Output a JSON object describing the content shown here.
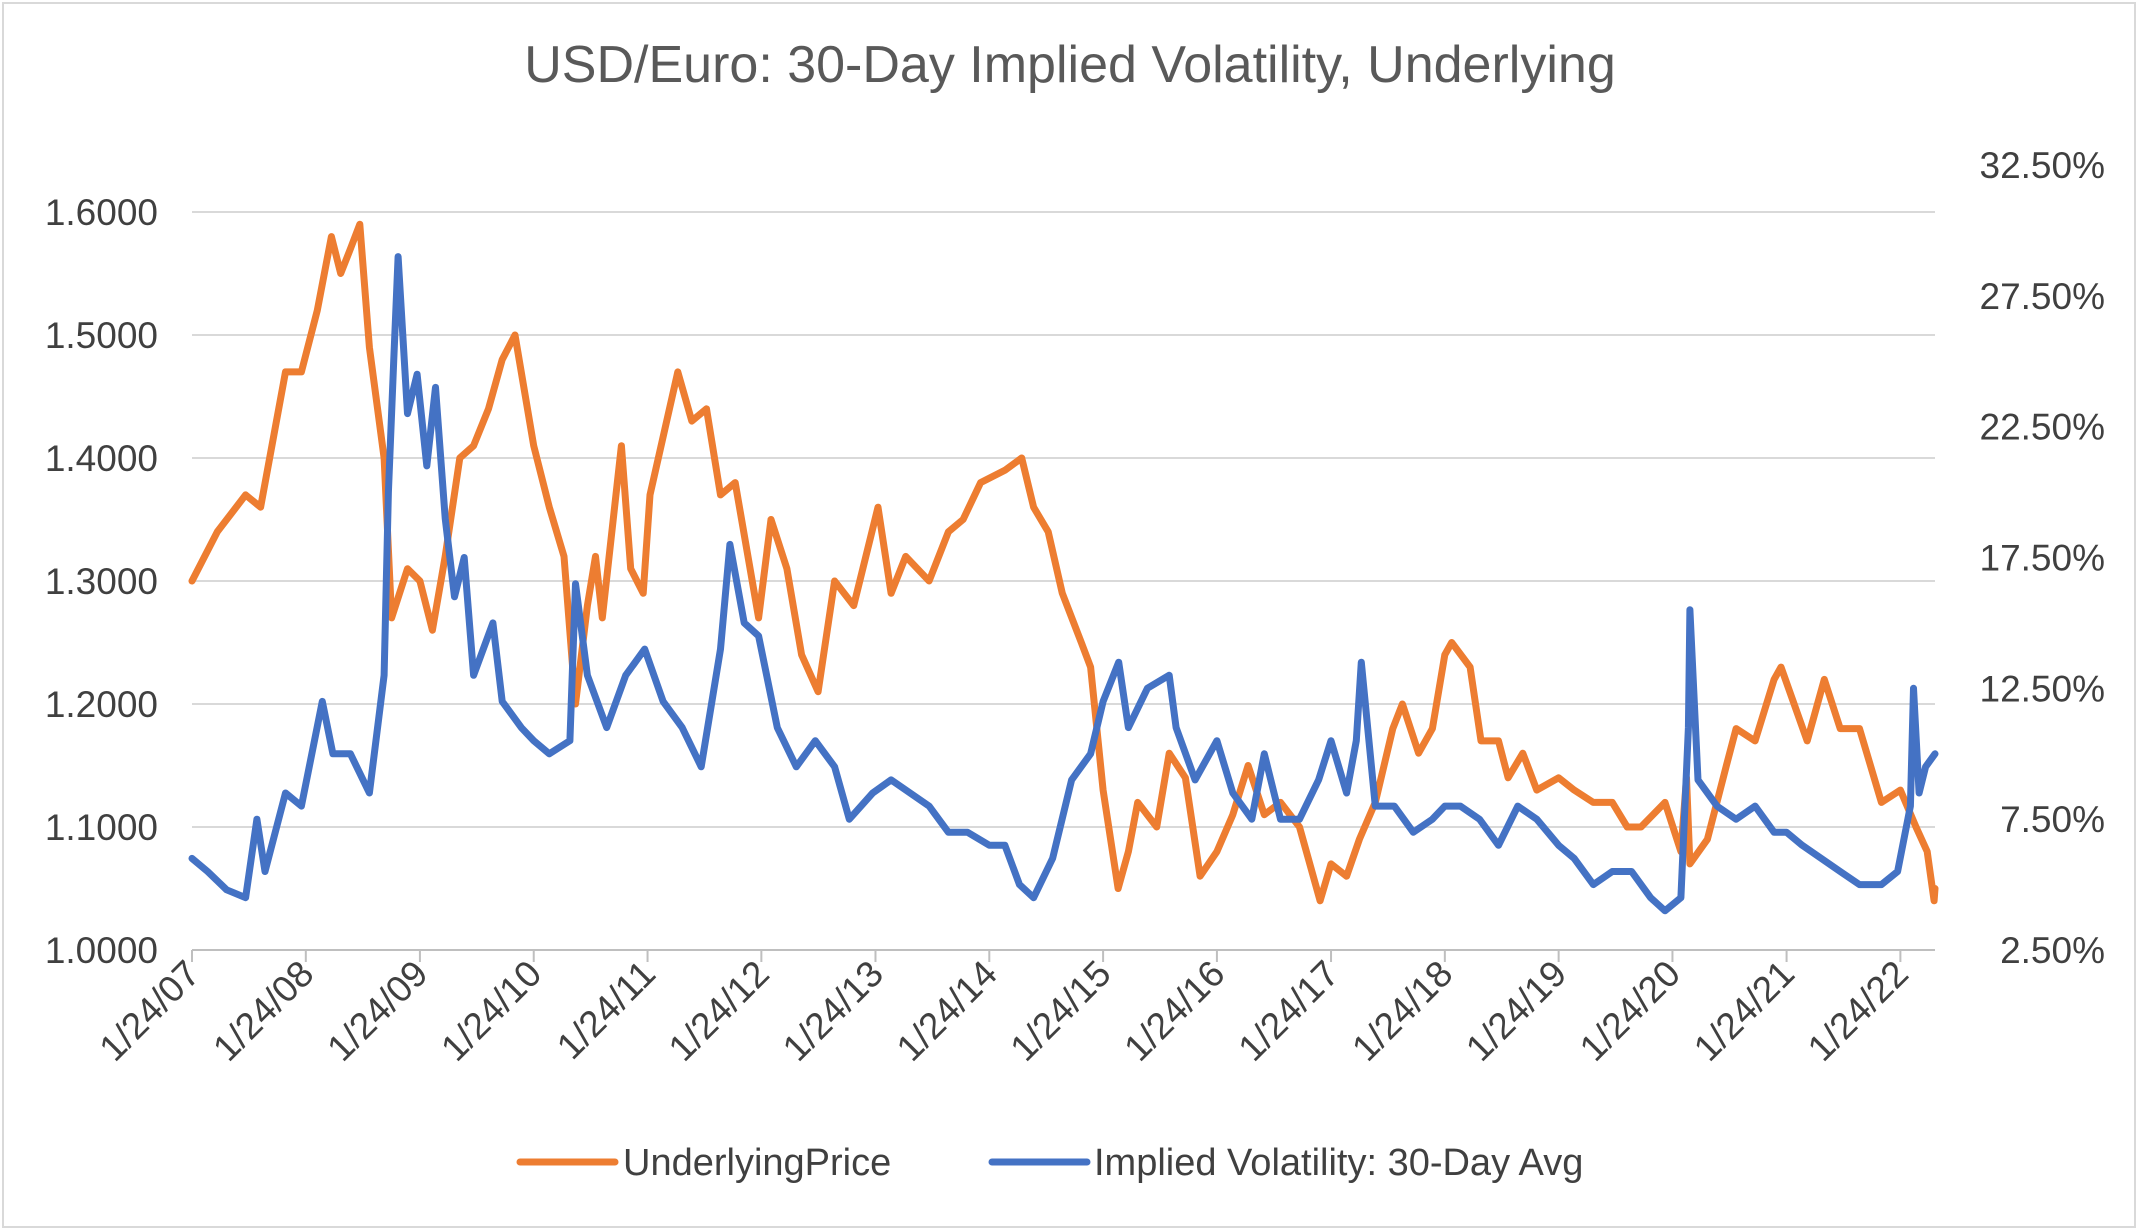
{
  "chart_data": {
    "type": "line",
    "title": "USD/Euro: 30-Day Implied Volatility, Underlying",
    "x_tick_labels": [
      "1/24/07",
      "1/24/08",
      "1/24/09",
      "1/24/10",
      "1/24/11",
      "1/24/12",
      "1/24/13",
      "1/24/14",
      "1/24/15",
      "1/24/16",
      "1/24/17",
      "1/24/18",
      "1/24/19",
      "1/24/20",
      "1/24/21",
      "1/24/22"
    ],
    "x_range": [
      "2007-01-24",
      "2022-05-15"
    ],
    "y_left": {
      "range": [
        1.0,
        1.6
      ],
      "tick_labels": [
        "1.0000",
        "1.1000",
        "1.2000",
        "1.3000",
        "1.4000",
        "1.5000",
        "1.6000"
      ],
      "tick_values": [
        1.0,
        1.1,
        1.2,
        1.3,
        1.4,
        1.5,
        1.6
      ]
    },
    "y_right": {
      "range": [
        2.5,
        32.5
      ],
      "tick_labels": [
        "2.50%",
        "7.50%",
        "12.50%",
        "17.50%",
        "22.50%",
        "27.50%",
        "32.50%"
      ],
      "tick_values": [
        2.5,
        7.5,
        12.5,
        17.5,
        22.5,
        27.5,
        32.5
      ]
    },
    "grid": true,
    "legend_position": "bottom",
    "series": [
      {
        "name": "UnderlyingPrice",
        "axis": "left",
        "color": "#ED7D31",
        "points": [
          [
            "2007-01-24",
            1.3
          ],
          [
            "2007-04-15",
            1.34
          ],
          [
            "2007-07-15",
            1.37
          ],
          [
            "2007-09-01",
            1.36
          ],
          [
            "2007-11-20",
            1.47
          ],
          [
            "2008-01-10",
            1.47
          ],
          [
            "2008-03-01",
            1.52
          ],
          [
            "2008-04-15",
            1.58
          ],
          [
            "2008-05-15",
            1.55
          ],
          [
            "2008-06-15",
            1.57
          ],
          [
            "2008-07-15",
            1.59
          ],
          [
            "2008-08-15",
            1.49
          ],
          [
            "2008-10-01",
            1.4
          ],
          [
            "2008-10-25",
            1.27
          ],
          [
            "2008-12-15",
            1.31
          ],
          [
            "2009-01-24",
            1.3
          ],
          [
            "2009-03-05",
            1.26
          ],
          [
            "2009-04-15",
            1.32
          ],
          [
            "2009-06-01",
            1.4
          ],
          [
            "2009-07-15",
            1.41
          ],
          [
            "2009-09-01",
            1.44
          ],
          [
            "2009-10-15",
            1.48
          ],
          [
            "2009-11-25",
            1.5
          ],
          [
            "2010-01-24",
            1.41
          ],
          [
            "2010-03-15",
            1.36
          ],
          [
            "2010-05-01",
            1.32
          ],
          [
            "2010-06-07",
            1.2
          ],
          [
            "2010-07-15",
            1.28
          ],
          [
            "2010-08-10",
            1.32
          ],
          [
            "2010-09-01",
            1.27
          ],
          [
            "2010-11-01",
            1.41
          ],
          [
            "2010-12-01",
            1.31
          ],
          [
            "2011-01-10",
            1.29
          ],
          [
            "2011-02-01",
            1.37
          ],
          [
            "2011-05-01",
            1.47
          ],
          [
            "2011-06-15",
            1.43
          ],
          [
            "2011-08-01",
            1.44
          ],
          [
            "2011-09-15",
            1.37
          ],
          [
            "2011-11-01",
            1.38
          ],
          [
            "2012-01-15",
            1.27
          ],
          [
            "2012-02-24",
            1.35
          ],
          [
            "2012-04-15",
            1.31
          ],
          [
            "2012-06-01",
            1.24
          ],
          [
            "2012-07-24",
            1.21
          ],
          [
            "2012-09-15",
            1.3
          ],
          [
            "2012-11-15",
            1.28
          ],
          [
            "2013-02-01",
            1.36
          ],
          [
            "2013-03-15",
            1.29
          ],
          [
            "2013-05-01",
            1.32
          ],
          [
            "2013-07-15",
            1.3
          ],
          [
            "2013-09-15",
            1.34
          ],
          [
            "2013-11-01",
            1.35
          ],
          [
            "2013-12-27",
            1.38
          ],
          [
            "2014-03-15",
            1.39
          ],
          [
            "2014-05-08",
            1.4
          ],
          [
            "2014-06-15",
            1.36
          ],
          [
            "2014-08-01",
            1.34
          ],
          [
            "2014-09-15",
            1.29
          ],
          [
            "2014-11-15",
            1.25
          ],
          [
            "2014-12-15",
            1.23
          ],
          [
            "2015-01-24",
            1.13
          ],
          [
            "2015-03-13",
            1.05
          ],
          [
            "2015-04-15",
            1.08
          ],
          [
            "2015-05-15",
            1.12
          ],
          [
            "2015-07-15",
            1.1
          ],
          [
            "2015-08-24",
            1.16
          ],
          [
            "2015-10-15",
            1.14
          ],
          [
            "2015-12-01",
            1.06
          ],
          [
            "2016-01-24",
            1.08
          ],
          [
            "2016-03-15",
            1.11
          ],
          [
            "2016-05-03",
            1.15
          ],
          [
            "2016-06-24",
            1.11
          ],
          [
            "2016-08-15",
            1.12
          ],
          [
            "2016-10-15",
            1.1
          ],
          [
            "2016-12-20",
            1.04
          ],
          [
            "2017-01-24",
            1.07
          ],
          [
            "2017-03-15",
            1.06
          ],
          [
            "2017-04-25",
            1.09
          ],
          [
            "2017-06-15",
            1.12
          ],
          [
            "2017-08-10",
            1.18
          ],
          [
            "2017-09-10",
            1.2
          ],
          [
            "2017-11-01",
            1.16
          ],
          [
            "2017-12-15",
            1.18
          ],
          [
            "2018-01-24",
            1.24
          ],
          [
            "2018-02-15",
            1.25
          ],
          [
            "2018-04-15",
            1.23
          ],
          [
            "2018-05-20",
            1.17
          ],
          [
            "2018-07-15",
            1.17
          ],
          [
            "2018-08-15",
            1.14
          ],
          [
            "2018-10-01",
            1.16
          ],
          [
            "2018-11-15",
            1.13
          ],
          [
            "2019-01-24",
            1.14
          ],
          [
            "2019-03-15",
            1.13
          ],
          [
            "2019-05-15",
            1.12
          ],
          [
            "2019-07-15",
            1.12
          ],
          [
            "2019-09-01",
            1.1
          ],
          [
            "2019-10-15",
            1.1
          ],
          [
            "2019-12-31",
            1.12
          ],
          [
            "2020-02-20",
            1.08
          ],
          [
            "2020-03-09",
            1.14
          ],
          [
            "2020-03-20",
            1.07
          ],
          [
            "2020-05-15",
            1.09
          ],
          [
            "2020-07-15",
            1.15
          ],
          [
            "2020-08-15",
            1.18
          ],
          [
            "2020-10-15",
            1.17
          ],
          [
            "2020-12-15",
            1.22
          ],
          [
            "2021-01-06",
            1.23
          ],
          [
            "2021-03-31",
            1.17
          ],
          [
            "2021-05-25",
            1.22
          ],
          [
            "2021-07-15",
            1.18
          ],
          [
            "2021-09-15",
            1.18
          ],
          [
            "2021-11-24",
            1.12
          ],
          [
            "2022-01-24",
            1.13
          ],
          [
            "2022-03-15",
            1.1
          ],
          [
            "2022-04-20",
            1.08
          ],
          [
            "2022-05-12",
            1.04
          ],
          [
            "2022-05-15",
            1.05
          ]
        ]
      },
      {
        "name": "Implied Volatility: 30-Day Avg",
        "axis": "right",
        "color": "#4472C4",
        "points": [
          [
            "2007-01-24",
            6.0
          ],
          [
            "2007-03-15",
            5.5
          ],
          [
            "2007-05-15",
            4.8
          ],
          [
            "2007-07-15",
            4.5
          ],
          [
            "2007-08-20",
            7.5
          ],
          [
            "2007-09-15",
            5.5
          ],
          [
            "2007-11-20",
            8.5
          ],
          [
            "2008-01-10",
            8.0
          ],
          [
            "2008-03-17",
            12.0
          ],
          [
            "2008-04-20",
            10.0
          ],
          [
            "2008-06-15",
            10.0
          ],
          [
            "2008-08-15",
            8.5
          ],
          [
            "2008-10-01",
            13.0
          ],
          [
            "2008-10-15",
            20.0
          ],
          [
            "2008-11-01",
            25.0
          ],
          [
            "2008-11-15",
            29.0
          ],
          [
            "2008-12-15",
            23.0
          ],
          [
            "2009-01-15",
            24.5
          ],
          [
            "2009-02-15",
            21.0
          ],
          [
            "2009-03-15",
            24.0
          ],
          [
            "2009-04-15",
            19.0
          ],
          [
            "2009-05-15",
            16.0
          ],
          [
            "2009-06-15",
            17.5
          ],
          [
            "2009-07-15",
            13.0
          ],
          [
            "2009-09-15",
            15.0
          ],
          [
            "2009-10-15",
            12.0
          ],
          [
            "2009-12-15",
            11.0
          ],
          [
            "2010-01-24",
            10.5
          ],
          [
            "2010-03-15",
            10.0
          ],
          [
            "2010-05-20",
            10.5
          ],
          [
            "2010-06-07",
            16.5
          ],
          [
            "2010-07-15",
            13.0
          ],
          [
            "2010-09-15",
            11.0
          ],
          [
            "2010-11-15",
            13.0
          ],
          [
            "2011-01-15",
            14.0
          ],
          [
            "2011-03-15",
            12.0
          ],
          [
            "2011-05-15",
            11.0
          ],
          [
            "2011-07-15",
            9.5
          ],
          [
            "2011-09-15",
            14.0
          ],
          [
            "2011-10-15",
            18.0
          ],
          [
            "2011-11-30",
            15.0
          ],
          [
            "2012-01-15",
            14.5
          ],
          [
            "2012-03-15",
            11.0
          ],
          [
            "2012-05-15",
            9.5
          ],
          [
            "2012-07-15",
            10.5
          ],
          [
            "2012-09-15",
            9.5
          ],
          [
            "2012-11-01",
            7.5
          ],
          [
            "2013-01-15",
            8.5
          ],
          [
            "2013-03-15",
            9.0
          ],
          [
            "2013-05-15",
            8.5
          ],
          [
            "2013-07-15",
            8.0
          ],
          [
            "2013-09-15",
            7.0
          ],
          [
            "2013-11-15",
            7.0
          ],
          [
            "2014-01-24",
            6.5
          ],
          [
            "2014-03-15",
            6.5
          ],
          [
            "2014-05-01",
            5.0
          ],
          [
            "2014-06-15",
            4.5
          ],
          [
            "2014-08-15",
            6.0
          ],
          [
            "2014-10-15",
            9.0
          ],
          [
            "2014-12-15",
            10.0
          ],
          [
            "2015-01-24",
            12.0
          ],
          [
            "2015-03-15",
            13.5
          ],
          [
            "2015-04-15",
            11.0
          ],
          [
            "2015-06-15",
            12.5
          ],
          [
            "2015-08-24",
            13.0
          ],
          [
            "2015-09-15",
            11.0
          ],
          [
            "2015-11-15",
            9.0
          ],
          [
            "2016-01-24",
            10.5
          ],
          [
            "2016-03-15",
            8.5
          ],
          [
            "2016-05-15",
            7.5
          ],
          [
            "2016-06-24",
            10.0
          ],
          [
            "2016-08-15",
            7.5
          ],
          [
            "2016-10-15",
            7.5
          ],
          [
            "2016-12-15",
            9.0
          ],
          [
            "2017-01-24",
            10.5
          ],
          [
            "2017-03-15",
            8.5
          ],
          [
            "2017-04-15",
            10.5
          ],
          [
            "2017-05-01",
            13.5
          ],
          [
            "2017-06-15",
            8.0
          ],
          [
            "2017-08-15",
            8.0
          ],
          [
            "2017-10-15",
            7.0
          ],
          [
            "2017-12-15",
            7.5
          ],
          [
            "2018-01-24",
            8.0
          ],
          [
            "2018-03-15",
            8.0
          ],
          [
            "2018-05-15",
            7.5
          ],
          [
            "2018-07-15",
            6.5
          ],
          [
            "2018-09-15",
            8.0
          ],
          [
            "2018-11-15",
            7.5
          ],
          [
            "2019-01-24",
            6.5
          ],
          [
            "2019-03-15",
            6.0
          ],
          [
            "2019-05-15",
            5.0
          ],
          [
            "2019-07-15",
            5.5
          ],
          [
            "2019-09-15",
            5.5
          ],
          [
            "2019-11-15",
            4.5
          ],
          [
            "2019-12-31",
            4.0
          ],
          [
            "2020-02-20",
            4.5
          ],
          [
            "2020-03-15",
            11.0
          ],
          [
            "2020-03-20",
            15.5
          ],
          [
            "2020-04-15",
            9.0
          ],
          [
            "2020-06-15",
            8.0
          ],
          [
            "2020-08-15",
            7.5
          ],
          [
            "2020-10-15",
            8.0
          ],
          [
            "2020-12-15",
            7.0
          ],
          [
            "2021-01-24",
            7.0
          ],
          [
            "2021-03-15",
            6.5
          ],
          [
            "2021-05-15",
            6.0
          ],
          [
            "2021-07-15",
            5.5
          ],
          [
            "2021-09-15",
            5.0
          ],
          [
            "2021-11-24",
            5.0
          ],
          [
            "2022-01-15",
            5.5
          ],
          [
            "2022-02-25",
            8.0
          ],
          [
            "2022-03-07",
            12.5
          ],
          [
            "2022-03-25",
            8.5
          ],
          [
            "2022-04-15",
            9.5
          ],
          [
            "2022-05-15",
            10.0
          ]
        ]
      }
    ]
  }
}
